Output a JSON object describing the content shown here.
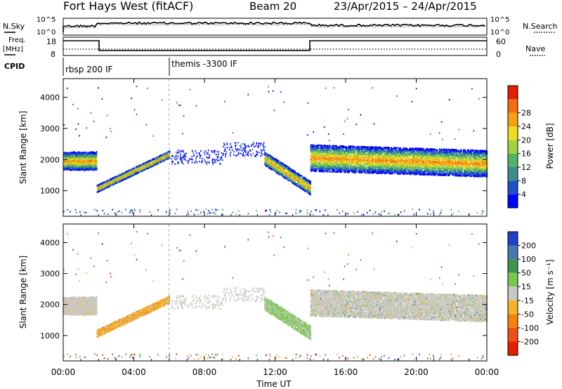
{
  "header": {
    "station": "Fort Hays West (fitACF)",
    "beam": "Beam 20",
    "dates": "23/Apr/2015 – 24/Apr/2015"
  },
  "summary_panels": {
    "nsky_label": "N.Sky",
    "nsky_ticks": [
      "10^5",
      "10^0"
    ],
    "nsearch_label": "N.Search",
    "nsearch_ticks": [
      "10^5",
      "10^0"
    ],
    "freq_label": "Freq.",
    "freq_unit": "[MHz]",
    "freq_ticks": [
      "18",
      "8"
    ],
    "nave_label": "Nave",
    "nave_ticks": [
      "60",
      "0"
    ],
    "cpid_label": "CPID",
    "cpid_modes": [
      {
        "label": "rbsp 200 IF",
        "start_hour": 0
      },
      {
        "label": "themis -3300 IF",
        "start_hour": 6
      }
    ]
  },
  "chart_data": [
    {
      "type": "heatmap",
      "title": "",
      "xlabel": "Time UT",
      "ylabel": "Slant Range [km]",
      "xlim": [
        0,
        24
      ],
      "ylim": [
        180,
        4600
      ],
      "x_ticks": [
        "00:00",
        "04:00",
        "08:00",
        "12:00",
        "16:00",
        "20:00",
        "00:00"
      ],
      "y_ticks": [
        1000,
        2000,
        3000,
        4000
      ],
      "colorbar": {
        "label": "Power [dB]",
        "ticks": [
          4,
          8,
          12,
          16,
          20,
          24,
          28
        ],
        "colors": [
          "#0000ff",
          "#1e50c8",
          "#3c8c8c",
          "#50b464",
          "#a0d23c",
          "#f0dc1e",
          "#f5a014",
          "#f56e0a",
          "#e61e00"
        ]
      },
      "features": [
        {
          "name": "",
          "time_range": [
            0.0,
            1.9
          ],
          "range_band": [
            1650,
            2250
          ],
          "power": "moderate-high"
        },
        {
          "name": "",
          "time_range": [
            1.9,
            6.0
          ],
          "range_start": [
            950,
            2050
          ],
          "power": "moderate"
        },
        {
          "name": "",
          "time_range": [
            11.4,
            14.0
          ],
          "range_band": [
            950,
            1900
          ],
          "power": "moderate-high"
        },
        {
          "name": "",
          "time_range": [
            14.0,
            24.0
          ],
          "range_band": [
            1550,
            2450
          ],
          "power": "moderate"
        }
      ]
    },
    {
      "type": "heatmap",
      "title": "",
      "xlabel": "Time UT",
      "ylabel": "Slant Range [km]",
      "xlim": [
        0,
        24
      ],
      "ylim": [
        180,
        4600
      ],
      "x_ticks": [
        "00:00",
        "04:00",
        "08:00",
        "12:00",
        "16:00",
        "20:00",
        "00:00"
      ],
      "y_ticks": [
        1000,
        2000,
        3000,
        4000
      ],
      "colorbar": {
        "label": "Velocity [m s⁻¹]",
        "ticks": [
          200,
          100,
          50,
          15,
          -15,
          -50,
          -100,
          -200
        ],
        "colors": [
          "#2040d0",
          "#4878b0",
          "#3c9650",
          "#78c850",
          "#c8c8c0",
          "#f5b428",
          "#f5820a",
          "#f05014",
          "#e61e00"
        ]
      },
      "features": [
        {
          "name": "",
          "time_range": [
            0.0,
            1.9
          ],
          "range_band": [
            1650,
            2250
          ],
          "velocity": "~0 (grey)"
        },
        {
          "name": "",
          "time_range": [
            1.9,
            6.0
          ],
          "velocity": "-15 to -50 (orange)"
        },
        {
          "name": "",
          "time_range": [
            11.4,
            14.0
          ],
          "velocity": "15 to 50 (green)"
        },
        {
          "name": "",
          "time_range": [
            14.0,
            24.0
          ],
          "range_band": [
            1550,
            2450
          ],
          "velocity": "~0 (grey)"
        }
      ]
    }
  ]
}
